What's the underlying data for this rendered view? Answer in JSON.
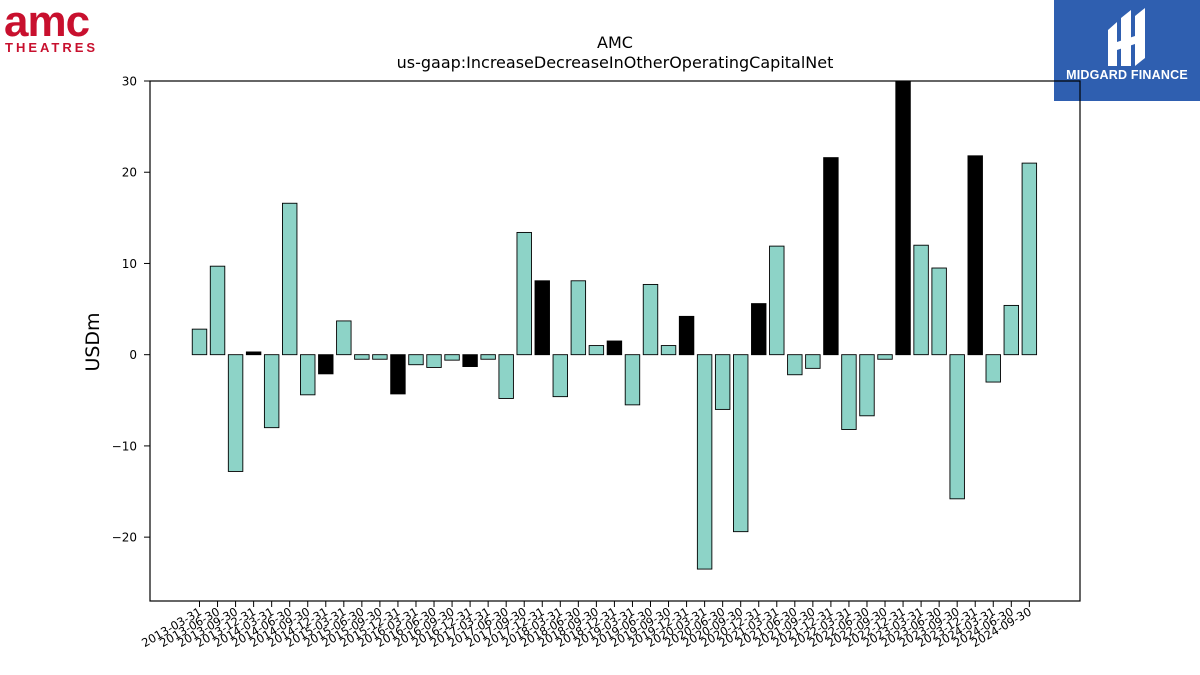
{
  "logos": {
    "left": {
      "word": "amc",
      "sub": "THEATRES",
      "color": "#c8102e"
    },
    "right": {
      "text": "MIDGARD FINANCE",
      "background": "#2f5fb0"
    }
  },
  "chart_data": {
    "type": "bar",
    "title": "AMC",
    "subtitle": "us-gaap:IncreaseDecreaseInOtherOperatingCapitalNet",
    "xlabel": "",
    "ylabel": "USDm",
    "ylim": [
      -27,
      30
    ],
    "yticks": [
      -20,
      -10,
      0,
      10,
      20,
      30
    ],
    "grid": false,
    "colors": {
      "default": "#8dd3c7",
      "highlight": "#000000"
    },
    "categories": [
      "2013-03-31",
      "2013-06-30",
      "2013-09-30",
      "2013-12-31",
      "2014-03-31",
      "2014-06-30",
      "2014-09-30",
      "2014-12-31",
      "2015-03-31",
      "2015-06-30",
      "2015-09-30",
      "2015-12-31",
      "2016-03-31",
      "2016-06-30",
      "2016-09-30",
      "2016-12-31",
      "2017-03-31",
      "2017-06-30",
      "2017-09-30",
      "2017-12-31",
      "2018-03-31",
      "2018-06-30",
      "2018-09-30",
      "2018-12-31",
      "2019-03-31",
      "2019-06-30",
      "2019-09-30",
      "2019-12-31",
      "2020-03-31",
      "2020-06-30",
      "2020-09-30",
      "2020-12-31",
      "2021-03-31",
      "2021-06-30",
      "2021-09-30",
      "2021-12-31",
      "2022-03-31",
      "2022-06-30",
      "2022-09-30",
      "2022-12-31",
      "2023-03-31",
      "2023-06-30",
      "2023-09-30",
      "2023-12-31",
      "2024-03-31",
      "2024-06-30",
      "2024-09-30"
    ],
    "values": [
      2.8,
      9.7,
      -12.8,
      0.3,
      -8.0,
      16.6,
      -4.4,
      -2.1,
      3.7,
      -0.5,
      -0.5,
      -4.3,
      -1.1,
      -1.4,
      -0.6,
      -1.3,
      -0.5,
      -4.8,
      13.4,
      8.1,
      -4.6,
      8.1,
      1.0,
      1.5,
      -5.5,
      7.7,
      1.0,
      4.2,
      -23.5,
      -6.0,
      -19.4,
      5.6,
      11.9,
      -2.2,
      -1.5,
      21.6,
      -8.2,
      -6.7,
      -0.5,
      30.0,
      12.0,
      9.5,
      -15.8,
      21.8,
      -3.0,
      5.4,
      21.0
    ],
    "highlight": [
      false,
      false,
      false,
      true,
      false,
      false,
      false,
      true,
      false,
      false,
      false,
      true,
      false,
      false,
      false,
      true,
      false,
      false,
      false,
      true,
      false,
      false,
      false,
      true,
      false,
      false,
      false,
      true,
      false,
      false,
      false,
      true,
      false,
      false,
      false,
      true,
      false,
      false,
      false,
      true,
      false,
      false,
      false,
      true,
      false,
      false,
      false
    ]
  }
}
